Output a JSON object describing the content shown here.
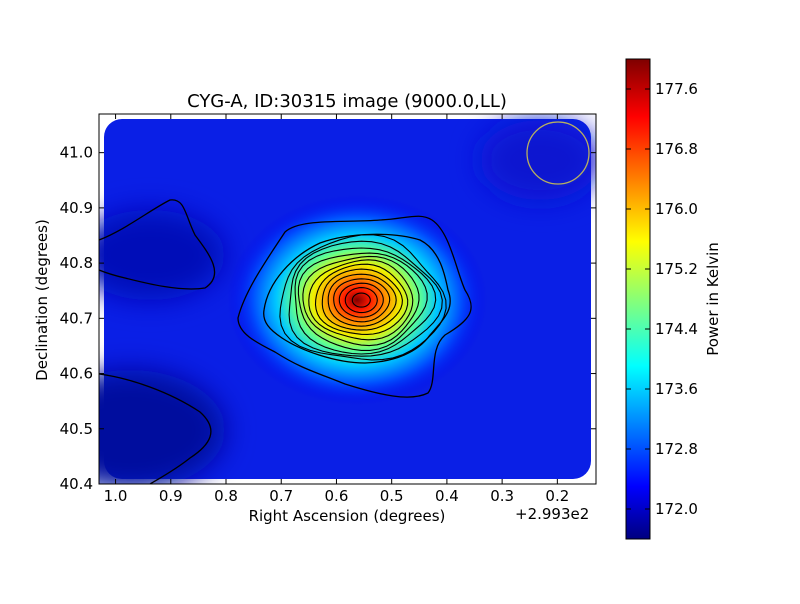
{
  "chart_data": {
    "type": "heatmap",
    "title": "CYG-A, ID:30315 image (9000.0,LL)",
    "xlabel": "Right Ascension (degrees)",
    "ylabel": "Declination (degrees)",
    "x_offset_label": "+2.993e2",
    "x_ticks": [
      "1.0",
      "0.9",
      "0.8",
      "0.7",
      "0.6",
      "0.5",
      "0.4",
      "0.3",
      "0.2"
    ],
    "y_ticks": [
      "40.4",
      "40.5",
      "40.6",
      "40.7",
      "40.8",
      "40.9",
      "41.0"
    ],
    "colorbar": {
      "label": "Power in Kelvin",
      "ticks": [
        "172.0",
        "172.8",
        "173.6",
        "174.4",
        "175.2",
        "176.0",
        "176.8",
        "177.6"
      ],
      "range": [
        171.6,
        178.0
      ],
      "colormap": "jet"
    },
    "xlim": [
      1.03,
      0.13
    ],
    "ylim": [
      40.4,
      41.07
    ],
    "peak": {
      "ra": 0.555,
      "dec": 40.733,
      "value": 178.0
    },
    "background_level": 172.0,
    "beam_circle_color": "#b8b060",
    "contour_color": "#000000"
  }
}
